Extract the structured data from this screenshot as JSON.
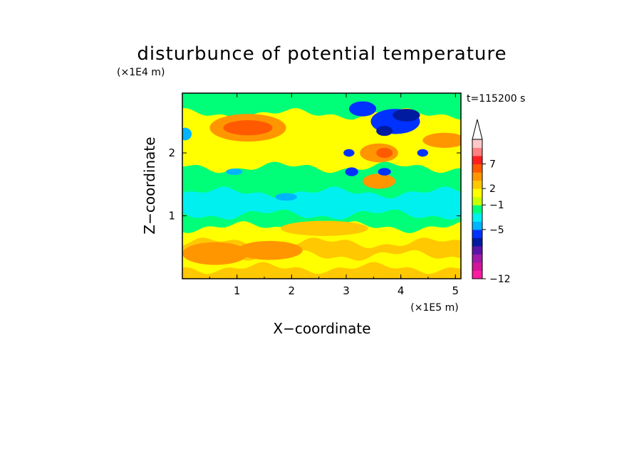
{
  "chart_data": {
    "type": "heatmap",
    "title": "disturbunce of potential temperature",
    "xlabel": "X−coordinate",
    "ylabel": "Z−coordinate",
    "x_unit": "(×1E5 m)",
    "y_unit": "(×1E4 m)",
    "time_label": "t=115200 s",
    "xlim": [
      0,
      5.1
    ],
    "ylim": [
      0,
      2.95
    ],
    "x_ticks": [
      1,
      2,
      3,
      4,
      5
    ],
    "y_ticks": [
      1,
      2
    ],
    "colorbar": {
      "labels": [
        {
          "value": 7,
          "text": "7"
        },
        {
          "value": 2,
          "text": "2"
        },
        {
          "value": -1,
          "text": "−1"
        },
        {
          "value": -5,
          "text": "−5"
        },
        {
          "value": -12,
          "text": "−12"
        }
      ],
      "colors": [
        "#ff1aa0",
        "#d41499",
        "#a11aa8",
        "#5a14a8",
        "#001aa0",
        "#0032ff",
        "#00b4ff",
        "#00f0f0",
        "#00ff78",
        "#c8ff00",
        "#ffff00",
        "#ffc800",
        "#ff9600",
        "#ff5a00",
        "#ff1e1e",
        "#ff8080",
        "#ffc8c8"
      ],
      "extend": "max"
    },
    "bands": [
      {
        "z": 0.05,
        "level": 2
      },
      {
        "z": 0.25,
        "level": 1
      },
      {
        "z": 0.45,
        "level": 2
      },
      {
        "z": 0.7,
        "level": 1
      },
      {
        "z": 0.9,
        "level": 0
      },
      {
        "z": 1.05,
        "level": -1
      },
      {
        "z": 1.25,
        "level": -1
      },
      {
        "z": 1.45,
        "level": 0
      },
      {
        "z": 1.65,
        "level": 0
      },
      {
        "z": 1.85,
        "level": 1
      },
      {
        "z": 2.05,
        "level": 1
      },
      {
        "z": 2.25,
        "level": 1
      },
      {
        "z": 2.5,
        "level": 1
      },
      {
        "z": 2.8,
        "level": 0
      }
    ],
    "features": [
      {
        "x": 1.2,
        "z": 2.4,
        "rx": 0.7,
        "rz": 0.22,
        "level": 3
      },
      {
        "x": 1.2,
        "z": 2.4,
        "rx": 0.45,
        "rz": 0.12,
        "level": 4
      },
      {
        "x": 0.6,
        "z": 0.4,
        "rx": 0.6,
        "rz": 0.18,
        "level": 3
      },
      {
        "x": 1.6,
        "z": 0.45,
        "rx": 0.6,
        "rz": 0.15,
        "level": 3
      },
      {
        "x": 3.6,
        "z": 2.0,
        "rx": 0.35,
        "rz": 0.15,
        "level": 3
      },
      {
        "x": 3.7,
        "z": 2.0,
        "rx": 0.15,
        "rz": 0.08,
        "level": 4
      },
      {
        "x": 3.6,
        "z": 1.55,
        "rx": 0.3,
        "rz": 0.12,
        "level": 3
      },
      {
        "x": 3.9,
        "z": 2.5,
        "rx": 0.45,
        "rz": 0.2,
        "level": -3
      },
      {
        "x": 4.1,
        "z": 2.6,
        "rx": 0.25,
        "rz": 0.1,
        "level": -4
      },
      {
        "x": 3.7,
        "z": 2.35,
        "rx": 0.15,
        "rz": 0.08,
        "level": -4
      },
      {
        "x": 3.3,
        "z": 2.7,
        "rx": 0.25,
        "rz": 0.12,
        "level": -3
      },
      {
        "x": 3.1,
        "z": 1.7,
        "rx": 0.12,
        "rz": 0.07,
        "level": -3
      },
      {
        "x": 3.7,
        "z": 1.7,
        "rx": 0.12,
        "rz": 0.06,
        "level": -3
      },
      {
        "x": 4.4,
        "z": 2.0,
        "rx": 0.1,
        "rz": 0.06,
        "level": -3
      },
      {
        "x": 3.05,
        "z": 2.0,
        "rx": 0.1,
        "rz": 0.06,
        "level": -3
      },
      {
        "x": 1.9,
        "z": 1.3,
        "rx": 0.2,
        "rz": 0.06,
        "level": -2
      },
      {
        "x": 0.95,
        "z": 1.7,
        "rx": 0.15,
        "rz": 0.05,
        "level": -2
      },
      {
        "x": 4.8,
        "z": 2.2,
        "rx": 0.4,
        "rz": 0.12,
        "level": 3
      },
      {
        "x": 0.05,
        "z": 2.3,
        "rx": 0.12,
        "rz": 0.1,
        "level": -2
      },
      {
        "x": 2.6,
        "z": 0.8,
        "rx": 0.8,
        "rz": 0.12,
        "level": 2
      }
    ]
  }
}
